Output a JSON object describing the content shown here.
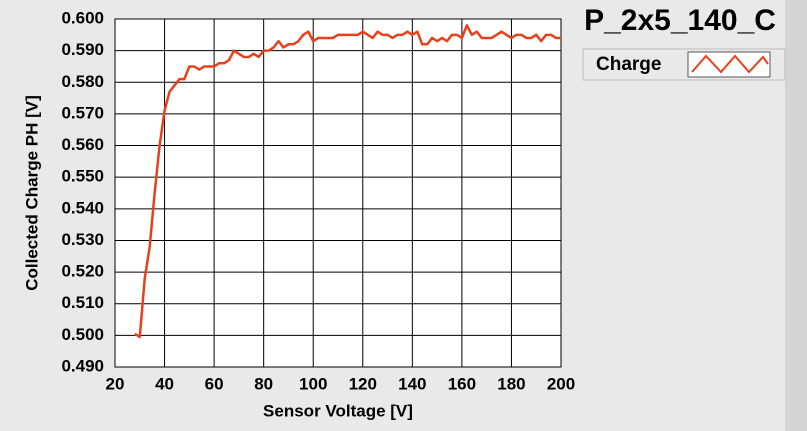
{
  "chart_data": {
    "type": "line",
    "title": "P_2x5_140_C",
    "x_label": "Sensor Voltage [V]",
    "y_label": "Collected Charge PH [V]",
    "xlim": [
      20,
      200
    ],
    "xticks": [
      20,
      40,
      60,
      80,
      100,
      120,
      140,
      160,
      180,
      200
    ],
    "ylim": [
      0.49,
      0.6
    ],
    "yticks": [
      {
        "value": 0.49,
        "label": "0.490"
      },
      {
        "value": 0.5,
        "label": "0.500"
      },
      {
        "value": 0.51,
        "label": "0.510"
      },
      {
        "value": 0.52,
        "label": "0.520"
      },
      {
        "value": 0.53,
        "label": "0.530"
      },
      {
        "value": 0.54,
        "label": "0.540"
      },
      {
        "value": 0.55,
        "label": "0.550"
      },
      {
        "value": 0.56,
        "label": "0.560"
      },
      {
        "value": 0.57,
        "label": "0.570"
      },
      {
        "value": 0.58,
        "label": "0.580"
      },
      {
        "value": 0.59,
        "label": "0.590"
      },
      {
        "value": 0.6,
        "label": "0.600"
      }
    ],
    "grid": true,
    "legend": "top-right",
    "x": [
      28,
      30,
      32,
      34,
      36,
      38,
      40,
      42,
      44,
      46,
      48,
      50,
      52,
      54,
      56,
      58,
      60,
      62,
      64,
      66,
      68,
      70,
      72,
      74,
      76,
      78,
      80,
      82,
      84,
      86,
      88,
      90,
      92,
      94,
      96,
      98,
      100,
      102,
      104,
      106,
      108,
      110,
      112,
      114,
      116,
      118,
      120,
      122,
      124,
      126,
      128,
      130,
      132,
      134,
      136,
      138,
      140,
      142,
      144,
      146,
      148,
      150,
      152,
      154,
      156,
      158,
      160,
      162,
      164,
      166,
      168,
      170,
      172,
      174,
      176,
      178,
      180,
      182,
      184,
      186,
      188,
      190,
      192,
      194,
      196,
      198,
      200
    ],
    "series": [
      {
        "name": "Charge",
        "color": "#e8401c",
        "values": [
          0.5005,
          0.4995,
          0.518,
          0.528,
          0.545,
          0.56,
          0.571,
          0.577,
          0.579,
          0.581,
          0.581,
          0.585,
          0.585,
          0.584,
          0.585,
          0.585,
          0.585,
          0.586,
          0.586,
          0.587,
          0.59,
          0.589,
          0.588,
          0.588,
          0.589,
          0.588,
          0.59,
          0.59,
          0.591,
          0.593,
          0.591,
          0.592,
          0.592,
          0.593,
          0.595,
          0.596,
          0.593,
          0.594,
          0.594,
          0.594,
          0.594,
          0.595,
          0.595,
          0.595,
          0.595,
          0.595,
          0.596,
          0.595,
          0.594,
          0.596,
          0.595,
          0.595,
          0.594,
          0.595,
          0.595,
          0.596,
          0.595,
          0.596,
          0.592,
          0.592,
          0.594,
          0.593,
          0.594,
          0.593,
          0.595,
          0.595,
          0.594,
          0.598,
          0.595,
          0.596,
          0.594,
          0.594,
          0.594,
          0.595,
          0.596,
          0.595,
          0.594,
          0.595,
          0.595,
          0.594,
          0.594,
          0.595,
          0.593,
          0.595,
          0.595,
          0.594,
          0.594
        ]
      }
    ]
  }
}
